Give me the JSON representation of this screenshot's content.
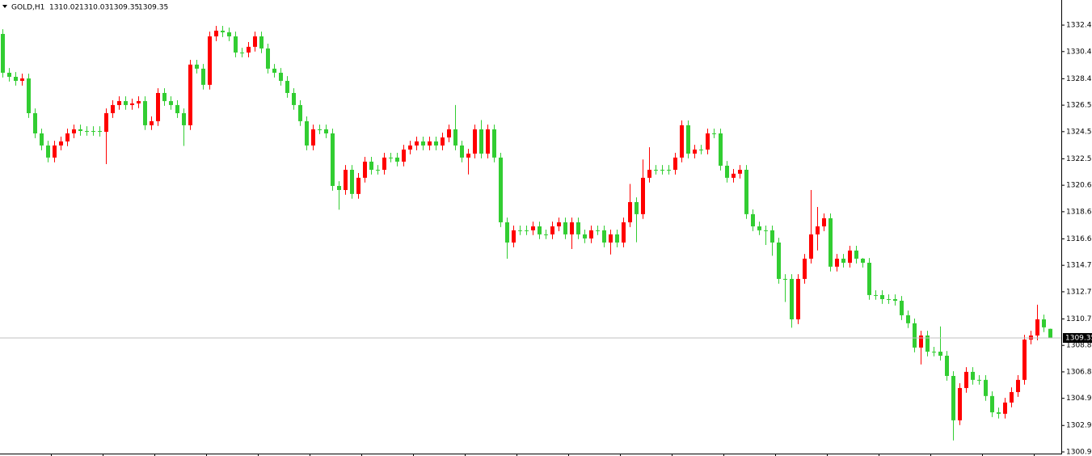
{
  "chart_data": {
    "type": "candlestick",
    "title": "GOLD,H1",
    "up_color": "#ff0000",
    "down_color": "#32cd32",
    "ylim": [
      1300.77,
      1334.25
    ],
    "yticks": [
      {
        "value": 1332.4,
        "label": "1332.40"
      },
      {
        "value": 1330.45,
        "label": "1330.45"
      },
      {
        "value": 1328.45,
        "label": "1328.45"
      },
      {
        "value": 1326.5,
        "label": "1326.50"
      },
      {
        "value": 1324.55,
        "label": "1324.55"
      },
      {
        "value": 1322.55,
        "label": "1322.55"
      },
      {
        "value": 1320.6,
        "label": "1320.60"
      },
      {
        "value": 1318.65,
        "label": "1318.65"
      },
      {
        "value": 1316.65,
        "label": "1316.65"
      },
      {
        "value": 1314.7,
        "label": "1314.70"
      },
      {
        "value": 1312.75,
        "label": "1312.75"
      },
      {
        "value": 1310.75,
        "label": "1310.75"
      },
      {
        "value": 1308.8,
        "label": "1308.80"
      },
      {
        "value": 1306.85,
        "label": "1306.85"
      },
      {
        "value": 1304.9,
        "label": "1304.90"
      },
      {
        "value": 1302.9,
        "label": "1302.90"
      },
      {
        "value": 1300.95,
        "label": "1300.95"
      }
    ],
    "ohlc": [
      [
        1331.75,
        1332.1,
        1328.54,
        1328.89
      ],
      [
        1328.89,
        1329.24,
        1328.24,
        1328.59
      ],
      [
        1328.59,
        1328.94,
        1327.94,
        1328.29
      ],
      [
        1328.29,
        1328.82,
        1327.94,
        1328.47
      ],
      [
        1328.47,
        1328.82,
        1325.56,
        1325.91
      ],
      [
        1325.91,
        1326.26,
        1324.07,
        1324.42
      ],
      [
        1324.42,
        1324.77,
        1323.18,
        1323.53
      ],
      [
        1323.53,
        1323.88,
        1322.29,
        1322.64
      ],
      [
        1322.64,
        1323.88,
        1322.29,
        1323.53
      ],
      [
        1323.53,
        1324.18,
        1323.18,
        1323.83
      ],
      [
        1323.83,
        1324.77,
        1323.48,
        1324.42
      ],
      [
        1324.42,
        1325.07,
        1324.07,
        1324.72
      ],
      [
        1324.72,
        1325.07,
        1324.25,
        1324.6
      ],
      [
        1324.6,
        1324.95,
        1324.25,
        1324.6
      ],
      [
        1324.6,
        1324.95,
        1324.25,
        1324.6
      ],
      [
        1324.6,
        1324.95,
        1324.19,
        1324.54
      ],
      [
        1324.54,
        1326.26,
        1322.16,
        1325.91
      ],
      [
        1325.91,
        1326.86,
        1325.56,
        1326.51
      ],
      [
        1326.51,
        1327.15,
        1326.16,
        1326.8
      ],
      [
        1326.8,
        1327.15,
        1326.16,
        1326.51
      ],
      [
        1326.51,
        1326.98,
        1326.16,
        1326.63
      ],
      [
        1326.63,
        1327.15,
        1326.28,
        1326.8
      ],
      [
        1326.8,
        1327.15,
        1324.67,
        1325.02
      ],
      [
        1325.02,
        1325.67,
        1324.67,
        1325.32
      ],
      [
        1325.32,
        1327.75,
        1324.97,
        1327.4
      ],
      [
        1327.4,
        1327.75,
        1326.45,
        1326.8
      ],
      [
        1326.8,
        1327.15,
        1326.16,
        1326.51
      ],
      [
        1326.51,
        1326.86,
        1325.56,
        1325.91
      ],
      [
        1325.91,
        1326.26,
        1323.5,
        1325.02
      ],
      [
        1325.02,
        1329.84,
        1324.67,
        1329.49
      ],
      [
        1329.49,
        1329.84,
        1328.84,
        1329.19
      ],
      [
        1329.19,
        1329.54,
        1327.65,
        1328.0
      ],
      [
        1328.0,
        1331.92,
        1327.65,
        1331.57
      ],
      [
        1331.57,
        1332.34,
        1331.22,
        1331.99
      ],
      [
        1331.99,
        1332.34,
        1331.52,
        1331.87
      ],
      [
        1331.87,
        1332.22,
        1331.22,
        1331.57
      ],
      [
        1331.57,
        1331.92,
        1330.03,
        1330.38
      ],
      [
        1330.38,
        1330.73,
        1330.03,
        1330.38
      ],
      [
        1330.38,
        1331.15,
        1330.03,
        1330.8
      ],
      [
        1330.8,
        1331.92,
        1330.45,
        1331.57
      ],
      [
        1331.57,
        1331.92,
        1330.33,
        1330.68
      ],
      [
        1330.68,
        1331.03,
        1328.84,
        1329.19
      ],
      [
        1329.19,
        1329.54,
        1328.54,
        1328.89
      ],
      [
        1328.89,
        1329.24,
        1327.94,
        1328.29
      ],
      [
        1328.29,
        1328.64,
        1327.05,
        1327.4
      ],
      [
        1327.4,
        1327.75,
        1326.16,
        1326.51
      ],
      [
        1326.51,
        1326.86,
        1324.97,
        1325.32
      ],
      [
        1325.32,
        1325.67,
        1323.18,
        1323.53
      ],
      [
        1323.53,
        1325.07,
        1323.18,
        1324.72
      ],
      [
        1324.72,
        1325.07,
        1324.37,
        1324.72
      ],
      [
        1324.72,
        1325.07,
        1324.07,
        1324.42
      ],
      [
        1324.42,
        1324.77,
        1320.2,
        1320.55
      ],
      [
        1320.55,
        1320.9,
        1318.8,
        1320.25
      ],
      [
        1320.25,
        1322.09,
        1319.9,
        1321.74
      ],
      [
        1321.74,
        1322.09,
        1319.61,
        1319.96
      ],
      [
        1319.96,
        1321.5,
        1319.61,
        1321.15
      ],
      [
        1321.15,
        1322.69,
        1320.8,
        1322.34
      ],
      [
        1322.34,
        1322.69,
        1321.39,
        1321.74
      ],
      [
        1321.74,
        1322.09,
        1321.39,
        1321.74
      ],
      [
        1321.74,
        1322.99,
        1321.39,
        1322.64
      ],
      [
        1322.64,
        1322.99,
        1322.29,
        1322.64
      ],
      [
        1322.64,
        1322.99,
        1321.99,
        1322.34
      ],
      [
        1322.34,
        1323.58,
        1321.99,
        1323.23
      ],
      [
        1323.23,
        1323.88,
        1322.88,
        1323.53
      ],
      [
        1323.53,
        1324.18,
        1323.18,
        1323.83
      ],
      [
        1323.83,
        1324.18,
        1323.18,
        1323.53
      ],
      [
        1323.53,
        1324.18,
        1323.18,
        1323.83
      ],
      [
        1323.83,
        1324.18,
        1323.18,
        1323.53
      ],
      [
        1323.53,
        1324.47,
        1323.18,
        1324.12
      ],
      [
        1324.12,
        1325.07,
        1323.77,
        1324.72
      ],
      [
        1324.72,
        1326.51,
        1323.18,
        1323.53
      ],
      [
        1323.53,
        1323.88,
        1322.29,
        1322.64
      ],
      [
        1322.64,
        1323.28,
        1321.4,
        1322.93
      ],
      [
        1322.93,
        1325.07,
        1322.58,
        1324.72
      ],
      [
        1324.72,
        1325.4,
        1322.58,
        1322.93
      ],
      [
        1322.93,
        1325.07,
        1322.58,
        1324.72
      ],
      [
        1324.72,
        1325.07,
        1322.29,
        1322.64
      ],
      [
        1322.64,
        1322.99,
        1317.52,
        1317.87
      ],
      [
        1317.87,
        1318.22,
        1315.19,
        1316.38
      ],
      [
        1316.38,
        1317.63,
        1316.03,
        1317.28
      ],
      [
        1317.28,
        1317.63,
        1316.93,
        1317.28
      ],
      [
        1317.28,
        1317.63,
        1316.93,
        1317.28
      ],
      [
        1317.28,
        1317.92,
        1316.93,
        1317.57
      ],
      [
        1317.57,
        1317.92,
        1316.63,
        1316.98
      ],
      [
        1316.98,
        1317.33,
        1316.63,
        1316.98
      ],
      [
        1316.98,
        1317.92,
        1316.63,
        1317.57
      ],
      [
        1317.57,
        1318.22,
        1317.22,
        1317.87
      ],
      [
        1317.87,
        1318.22,
        1316.63,
        1316.98
      ],
      [
        1316.98,
        1318.22,
        1315.9,
        1317.87
      ],
      [
        1317.87,
        1318.22,
        1316.63,
        1316.98
      ],
      [
        1316.98,
        1317.33,
        1316.33,
        1316.68
      ],
      [
        1316.68,
        1317.63,
        1316.33,
        1317.28
      ],
      [
        1317.28,
        1317.63,
        1316.93,
        1317.28
      ],
      [
        1317.28,
        1317.63,
        1316.03,
        1316.38
      ],
      [
        1316.38,
        1317.33,
        1315.5,
        1316.98
      ],
      [
        1316.98,
        1317.33,
        1316.03,
        1316.38
      ],
      [
        1316.38,
        1318.22,
        1316.03,
        1317.87
      ],
      [
        1317.87,
        1320.7,
        1317.52,
        1319.36
      ],
      [
        1319.36,
        1319.71,
        1316.4,
        1318.47
      ],
      [
        1318.47,
        1322.5,
        1318.12,
        1321.15
      ],
      [
        1321.15,
        1323.4,
        1320.8,
        1321.74
      ],
      [
        1321.74,
        1322.09,
        1321.39,
        1321.74
      ],
      [
        1321.74,
        1322.09,
        1321.39,
        1321.74
      ],
      [
        1321.74,
        1322.09,
        1321.39,
        1321.74
      ],
      [
        1321.74,
        1322.99,
        1321.39,
        1322.64
      ],
      [
        1322.64,
        1325.37,
        1322.29,
        1325.02
      ],
      [
        1325.02,
        1325.37,
        1322.58,
        1322.93
      ],
      [
        1322.93,
        1323.58,
        1322.58,
        1323.23
      ],
      [
        1323.23,
        1323.58,
        1322.88,
        1323.23
      ],
      [
        1323.23,
        1324.77,
        1322.88,
        1324.42
      ],
      [
        1324.42,
        1324.77,
        1324.07,
        1324.42
      ],
      [
        1324.42,
        1324.77,
        1321.69,
        1322.04
      ],
      [
        1322.04,
        1322.39,
        1320.8,
        1321.15
      ],
      [
        1321.15,
        1321.8,
        1320.8,
        1321.45
      ],
      [
        1321.45,
        1322.09,
        1321.1,
        1321.74
      ],
      [
        1321.74,
        1322.09,
        1318.12,
        1318.47
      ],
      [
        1318.47,
        1318.82,
        1317.22,
        1317.57
      ],
      [
        1317.57,
        1317.92,
        1316.93,
        1317.28
      ],
      [
        1317.28,
        1317.63,
        1316.2,
        1317.28
      ],
      [
        1317.28,
        1317.63,
        1315.4,
        1316.38
      ],
      [
        1316.38,
        1316.73,
        1313.35,
        1313.7
      ],
      [
        1313.7,
        1314.05,
        1312.0,
        1313.7
      ],
      [
        1313.7,
        1314.05,
        1310.1,
        1310.72
      ],
      [
        1310.72,
        1314.05,
        1310.37,
        1313.7
      ],
      [
        1313.7,
        1315.54,
        1313.35,
        1315.19
      ],
      [
        1315.19,
        1320.25,
        1314.84,
        1316.98
      ],
      [
        1316.98,
        1319.0,
        1315.8,
        1317.57
      ],
      [
        1317.57,
        1318.52,
        1317.22,
        1318.17
      ],
      [
        1318.17,
        1318.52,
        1314.25,
        1314.6
      ],
      [
        1314.6,
        1315.54,
        1314.25,
        1315.19
      ],
      [
        1315.19,
        1315.54,
        1314.54,
        1314.89
      ],
      [
        1314.89,
        1316.14,
        1314.54,
        1315.79
      ],
      [
        1315.79,
        1316.14,
        1314.84,
        1315.19
      ],
      [
        1315.19,
        1315.24,
        1314.54,
        1314.89
      ],
      [
        1314.89,
        1315.24,
        1312.16,
        1312.51
      ],
      [
        1312.51,
        1312.86,
        1312.16,
        1312.51
      ],
      [
        1312.51,
        1312.86,
        1311.86,
        1312.21
      ],
      [
        1312.21,
        1312.56,
        1311.86,
        1312.21
      ],
      [
        1312.21,
        1312.56,
        1311.74,
        1312.09
      ],
      [
        1312.09,
        1312.44,
        1310.67,
        1311.02
      ],
      [
        1311.02,
        1311.37,
        1310.08,
        1310.43
      ],
      [
        1310.43,
        1310.78,
        1308.29,
        1308.64
      ],
      [
        1308.64,
        1309.88,
        1307.4,
        1309.53
      ],
      [
        1309.53,
        1309.88,
        1307.99,
        1308.34
      ],
      [
        1308.34,
        1308.69,
        1307.99,
        1308.34
      ],
      [
        1308.34,
        1310.2,
        1307.69,
        1308.04
      ],
      [
        1308.04,
        1308.39,
        1306.2,
        1306.55
      ],
      [
        1306.55,
        1306.9,
        1301.8,
        1303.28
      ],
      [
        1303.28,
        1306.01,
        1302.93,
        1305.66
      ],
      [
        1305.66,
        1307.2,
        1305.31,
        1306.85
      ],
      [
        1306.85,
        1307.2,
        1305.91,
        1306.26
      ],
      [
        1306.26,
        1306.61,
        1305.91,
        1306.26
      ],
      [
        1306.26,
        1306.61,
        1304.72,
        1305.07
      ],
      [
        1305.07,
        1305.42,
        1303.52,
        1303.87
      ],
      [
        1303.87,
        1304.22,
        1303.41,
        1303.76
      ],
      [
        1303.76,
        1304.94,
        1303.41,
        1304.59
      ],
      [
        1304.59,
        1305.71,
        1304.24,
        1305.36
      ],
      [
        1305.36,
        1306.61,
        1305.01,
        1306.26
      ],
      [
        1306.26,
        1309.58,
        1305.91,
        1309.23
      ],
      [
        1309.23,
        1309.88,
        1308.88,
        1309.53
      ],
      [
        1309.53,
        1311.8,
        1309.18,
        1310.72
      ],
      [
        1310.72,
        1311.07,
        1309.78,
        1310.13
      ],
      [
        1310.02,
        1310.03,
        1309.35,
        1309.35
      ]
    ]
  }
}
